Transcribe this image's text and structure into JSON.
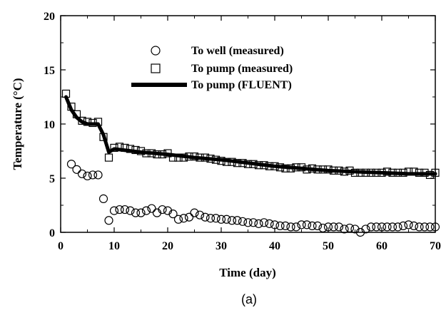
{
  "chart_data": {
    "type": "scatter",
    "xlabel": "Time (day)",
    "ylabel": "Temperature (°C)",
    "xlim": [
      0,
      70
    ],
    "ylim": [
      0,
      20
    ],
    "xticks": [
      "0",
      "10",
      "20",
      "30",
      "40",
      "50",
      "60",
      "70"
    ],
    "yticks": [
      "0",
      "5",
      "10",
      "15",
      "20"
    ],
    "grid": false,
    "legend_position": "top-center",
    "caption": "(a)",
    "series": [
      {
        "name": "To well (measured)",
        "marker": "circle",
        "color": "#000000",
        "x": [
          2,
          3,
          4,
          5,
          6,
          7,
          8,
          9,
          10,
          11,
          12,
          13,
          14,
          15,
          16,
          17,
          18,
          19,
          20,
          21,
          22,
          23,
          24,
          25,
          26,
          27,
          28,
          29,
          30,
          31,
          32,
          33,
          34,
          35,
          36,
          37,
          38,
          39,
          40,
          41,
          42,
          43,
          44,
          45,
          46,
          47,
          48,
          49,
          50,
          51,
          52,
          53,
          54,
          55,
          56,
          57,
          58,
          59,
          60,
          61,
          62,
          63,
          64,
          65,
          66,
          67,
          68,
          69,
          70
        ],
        "y": [
          6.3,
          5.8,
          5.4,
          5.2,
          5.3,
          5.3,
          3.1,
          1.1,
          2.0,
          2.1,
          2.1,
          2.0,
          1.8,
          1.8,
          2.0,
          2.2,
          1.8,
          2.1,
          2.0,
          1.7,
          1.2,
          1.3,
          1.4,
          1.8,
          1.6,
          1.4,
          1.3,
          1.3,
          1.2,
          1.2,
          1.1,
          1.1,
          1.0,
          0.9,
          0.9,
          0.8,
          0.9,
          0.8,
          0.7,
          0.6,
          0.6,
          0.5,
          0.5,
          0.7,
          0.7,
          0.6,
          0.6,
          0.4,
          0.5,
          0.5,
          0.5,
          0.3,
          0.4,
          0.3,
          0.0,
          0.3,
          0.5,
          0.5,
          0.5,
          0.5,
          0.5,
          0.5,
          0.6,
          0.7,
          0.6,
          0.5,
          0.5,
          0.5,
          0.5
        ]
      },
      {
        "name": "To pump (measured)",
        "marker": "square",
        "color": "#000000",
        "x": [
          1,
          2,
          3,
          4,
          5,
          6,
          7,
          8,
          9,
          10,
          11,
          12,
          13,
          14,
          15,
          16,
          17,
          18,
          19,
          20,
          21,
          22,
          23,
          24,
          25,
          26,
          27,
          28,
          29,
          30,
          31,
          32,
          33,
          34,
          35,
          36,
          37,
          38,
          39,
          40,
          41,
          42,
          43,
          44,
          45,
          46,
          47,
          48,
          49,
          50,
          51,
          52,
          53,
          54,
          55,
          56,
          57,
          58,
          59,
          60,
          61,
          62,
          63,
          64,
          65,
          66,
          67,
          68,
          69,
          70
        ],
        "y": [
          12.8,
          11.6,
          10.9,
          10.3,
          10.2,
          10.1,
          10.2,
          8.8,
          6.9,
          7.8,
          7.9,
          7.8,
          7.7,
          7.6,
          7.5,
          7.3,
          7.3,
          7.2,
          7.2,
          7.3,
          6.9,
          6.9,
          6.9,
          7.0,
          7.0,
          6.9,
          6.9,
          6.8,
          6.7,
          6.6,
          6.5,
          6.5,
          6.4,
          6.4,
          6.3,
          6.3,
          6.2,
          6.2,
          6.1,
          6.1,
          6.0,
          5.9,
          5.9,
          6.0,
          6.0,
          5.8,
          5.9,
          5.8,
          5.8,
          5.8,
          5.7,
          5.7,
          5.6,
          5.7,
          5.5,
          5.5,
          5.5,
          5.5,
          5.5,
          5.5,
          5.6,
          5.5,
          5.5,
          5.5,
          5.6,
          5.6,
          5.5,
          5.5,
          5.3,
          5.5
        ]
      },
      {
        "name": "To pump (FLUENT)",
        "marker": "line",
        "color": "#000000",
        "x": [
          1,
          2,
          3,
          4,
          5,
          6,
          7,
          8,
          9,
          10,
          15,
          20,
          25,
          30,
          35,
          40,
          45,
          50,
          55,
          60,
          65,
          70
        ],
        "y": [
          12.5,
          11.3,
          10.6,
          10.2,
          10.0,
          10.0,
          10.0,
          9.0,
          7.4,
          7.7,
          7.4,
          7.2,
          6.9,
          6.7,
          6.4,
          6.1,
          5.9,
          5.7,
          5.6,
          5.5,
          5.4,
          5.4
        ]
      }
    ]
  }
}
